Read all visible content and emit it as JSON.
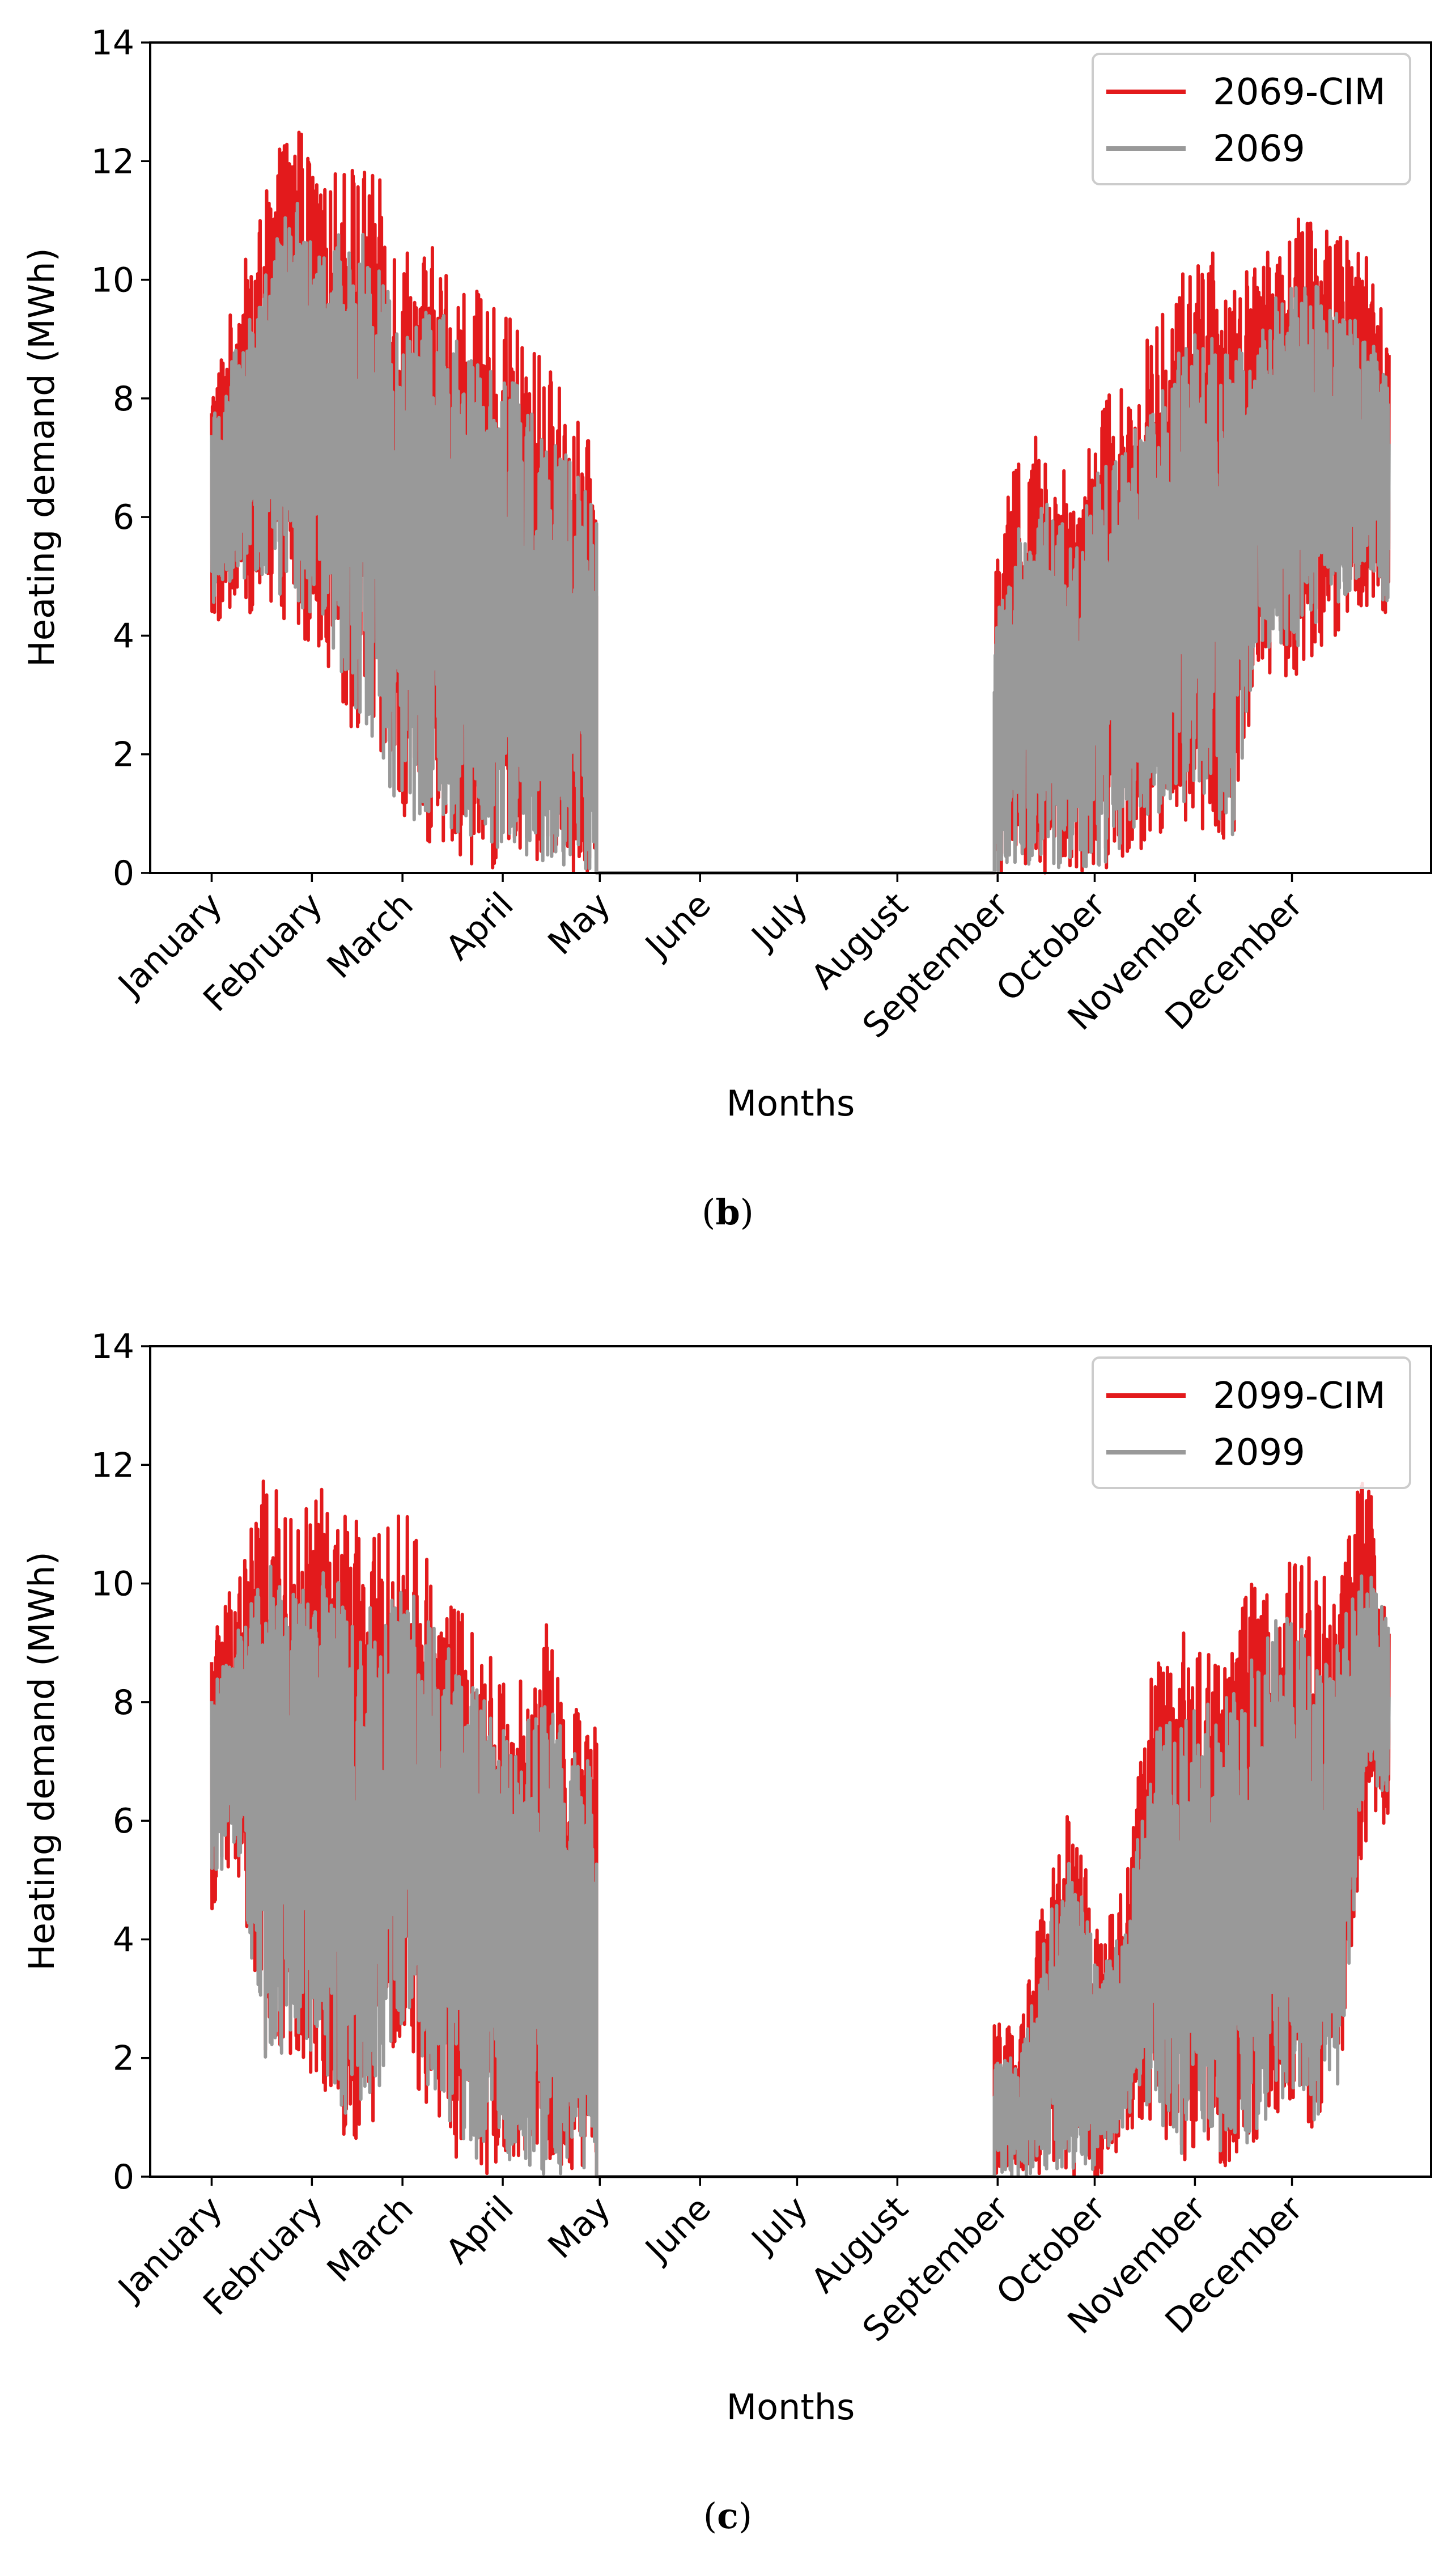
{
  "colors": {
    "cim": "#e31a1c",
    "base": "#999999",
    "axis": "#000000"
  },
  "chart_data": [
    {
      "type": "line",
      "panel": "b",
      "caption_letter": "b",
      "xlabel": "Months",
      "ylabel": "Heating demand (MWh)",
      "ylim": [
        0,
        14
      ],
      "yticks": [
        "0",
        "2",
        "4",
        "6",
        "8",
        "10",
        "12",
        "14"
      ],
      "ytick_values": [
        0,
        2,
        4,
        6,
        8,
        10,
        12,
        14
      ],
      "months": [
        "January",
        "February",
        "March",
        "April",
        "May",
        "June",
        "July",
        "August",
        "September",
        "October",
        "November",
        "December"
      ],
      "legend": [
        "2069-CIM",
        "2069"
      ],
      "series": [
        {
          "name": "2069-CIM",
          "color": "#e31a1c",
          "env_max": [
            8.3,
            10.0,
            11.5,
            13.0,
            11.5,
            12.2,
            11.8,
            10.8,
            10.6,
            10.2,
            9.6,
            9.3,
            8.8,
            8.0,
            7.0
          ],
          "env_min": [
            4.0,
            4.5,
            4.2,
            4.0,
            3.8,
            2.5,
            1.5,
            0.5,
            0.3,
            0.2,
            0.1,
            0.0,
            0.0,
            0.0,
            0.0
          ],
          "env_max_late": [
            5.3,
            7.3,
            7.6,
            6.6,
            8.1,
            8.5,
            9.2,
            10.0,
            10.7,
            9.9,
            10.3,
            11.4,
            11.3,
            10.8,
            10.6,
            9.4
          ],
          "env_min_late": [
            0.0,
            0.0,
            0.0,
            0.0,
            0.0,
            0.2,
            0.5,
            1.0,
            0.5,
            0.2,
            3.6,
            3.0,
            3.5,
            4.0,
            4.5,
            4.0
          ]
        },
        {
          "name": "2069",
          "color": "#999999",
          "env_max": [
            7.8,
            9.0,
            10.2,
            11.6,
            10.4,
            11.0,
            10.6,
            9.7,
            9.6,
            9.2,
            8.6,
            8.3,
            7.8,
            7.1,
            6.3
          ],
          "env_min": [
            4.5,
            5.0,
            4.8,
            4.5,
            4.3,
            2.9,
            1.9,
            0.9,
            0.7,
            0.5,
            0.4,
            0.2,
            0.1,
            0.0,
            0.0
          ],
          "env_max_late": [
            4.3,
            6.0,
            6.3,
            5.6,
            6.9,
            7.3,
            8.0,
            8.8,
            9.4,
            8.8,
            9.2,
            10.1,
            10.0,
            9.6,
            9.3,
            8.4
          ],
          "env_min_late": [
            0.0,
            0.0,
            0.0,
            0.0,
            0.1,
            0.4,
            0.8,
            1.3,
            0.8,
            0.4,
            4.0,
            3.4,
            4.0,
            4.4,
            4.9,
            4.4
          ]
        }
      ]
    },
    {
      "type": "line",
      "panel": "c",
      "caption_letter": "c",
      "xlabel": "Months",
      "ylabel": "Heating demand (MWh)",
      "ylim": [
        0,
        14
      ],
      "yticks": [
        "0",
        "2",
        "4",
        "6",
        "8",
        "10",
        "12",
        "14"
      ],
      "ytick_values": [
        0,
        2,
        4,
        6,
        8,
        10,
        12,
        14
      ],
      "months": [
        "January",
        "February",
        "March",
        "April",
        "May",
        "June",
        "July",
        "August",
        "September",
        "October",
        "November",
        "December"
      ],
      "legend": [
        "2099-CIM",
        "2099"
      ],
      "series": [
        {
          "name": "2099-CIM",
          "color": "#e31a1c",
          "env_max": [
            9.2,
            10.5,
            11.9,
            11.0,
            11.7,
            11.2,
            10.8,
            11.3,
            10.5,
            9.6,
            9.0,
            8.0,
            9.7,
            8.0,
            7.8
          ],
          "env_min": [
            4.5,
            5.0,
            1.0,
            2.0,
            1.5,
            0.5,
            1.0,
            2.0,
            1.0,
            0.2,
            0.0,
            0.0,
            0.0,
            0.0,
            0.0
          ],
          "env_max_late": [
            2.6,
            2.5,
            5.1,
            6.4,
            4.0,
            5.0,
            8.7,
            9.5,
            9.0,
            9.2,
            10.3,
            10.7,
            10.5,
            10.0,
            12.4,
            10.3
          ],
          "env_min_late": [
            0.0,
            0.0,
            0.0,
            0.0,
            0.0,
            0.5,
            1.0,
            0.0,
            0.3,
            0.0,
            0.5,
            1.0,
            0.5,
            1.0,
            5.6,
            6.0
          ]
        },
        {
          "name": "2099",
          "color": "#999999",
          "env_max": [
            8.4,
            9.3,
            10.4,
            9.8,
            10.3,
            9.9,
            9.5,
            10.0,
            9.4,
            8.6,
            8.1,
            7.3,
            8.6,
            7.2,
            7.0
          ],
          "env_min": [
            4.9,
            5.4,
            1.4,
            2.4,
            1.9,
            0.9,
            1.4,
            2.4,
            1.3,
            0.5,
            0.2,
            0.1,
            0.0,
            0.0,
            0.0
          ],
          "env_max_late": [
            2.0,
            2.0,
            4.3,
            5.5,
            3.4,
            4.3,
            7.6,
            8.3,
            8.0,
            8.1,
            9.1,
            9.5,
            9.3,
            8.9,
            10.5,
            9.3
          ],
          "env_min_late": [
            0.0,
            0.0,
            0.0,
            0.0,
            0.1,
            0.8,
            1.3,
            0.2,
            0.6,
            0.1,
            0.8,
            1.3,
            0.8,
            1.3,
            6.1,
            6.5
          ]
        }
      ]
    }
  ]
}
